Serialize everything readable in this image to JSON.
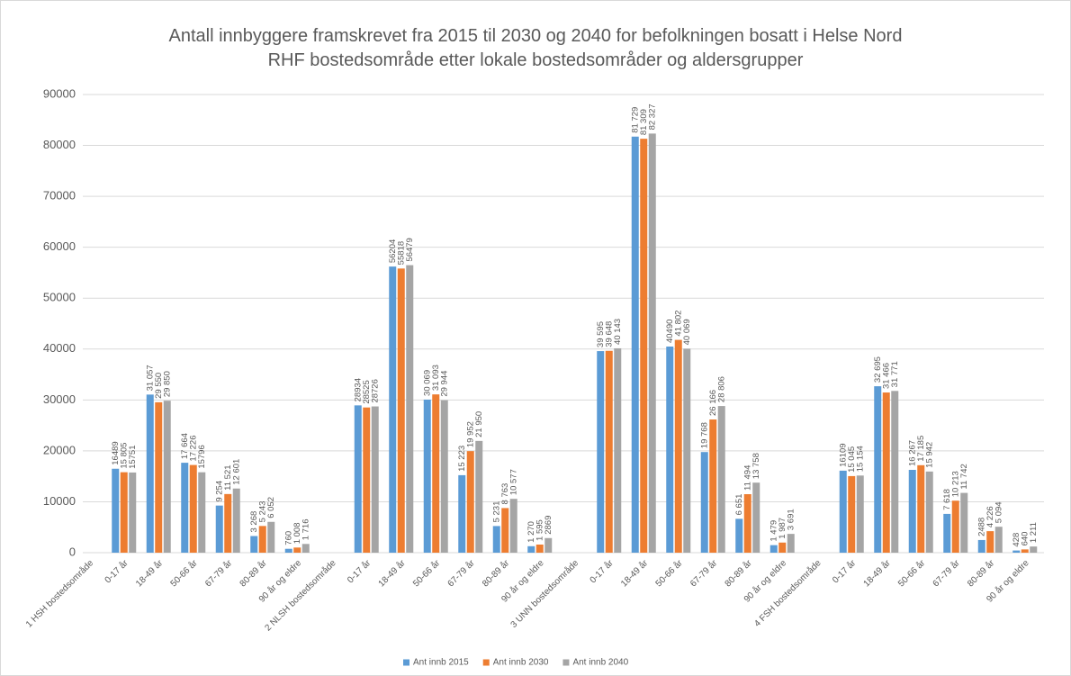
{
  "chart_data": {
    "type": "bar",
    "title": [
      "Antall innbyggere framskrevet fra 2015 til 2030 og 2040 for befolkningen bosatt i Helse Nord",
      "RHF bostedsområde  etter lokale bostedsområder  og aldersgrupper"
    ],
    "categories": [
      "1 HSH bostedsområde",
      "0-17 år",
      "18-49 år",
      "50-66 år",
      "67-79 år",
      "80-89 år",
      "90 år og eldre",
      "2 NLSH bostedsområde",
      "0-17 år",
      "18-49 år",
      "50-66 år",
      "67-79 år",
      "80-89 år",
      "90 år og eldre",
      "3 UNN bostedsområde",
      "0-17 år",
      "18-49 år",
      "50-66 år",
      "67-79 år",
      "80-89 år",
      "90 år og eldre",
      "4 FSH bostedsområde",
      "0-17 år",
      "18-49 år",
      "50-66 år",
      "67-79 år",
      "80-89 år",
      "90 år og eldre"
    ],
    "series": [
      {
        "name": "Ant innb 2015",
        "color": "#5b9bd5",
        "values": [
          null,
          16489,
          31057,
          17664,
          9254,
          3268,
          760,
          null,
          28934,
          56204,
          30069,
          15223,
          5231,
          1270,
          null,
          39595,
          81729,
          40490,
          19768,
          6651,
          1479,
          null,
          16109,
          32695,
          16267,
          7618,
          2488,
          428
        ],
        "value_labels": [
          null,
          "16489",
          "31 057",
          "17 664",
          "9 254",
          "3 268",
          "760",
          null,
          "28934",
          "56204",
          "30 069",
          "15 223",
          "5 231",
          "1 270",
          null,
          "39 595",
          "81 729",
          "40490",
          "19 768",
          "6 651",
          "1 479",
          null,
          "16109",
          "32 695",
          "16 267",
          "7 618",
          "2488",
          "428"
        ]
      },
      {
        "name": "Ant innb 2030",
        "color": "#ed7d31",
        "values": [
          null,
          15805,
          29550,
          17226,
          11521,
          5243,
          1008,
          null,
          28525,
          55818,
          31093,
          19952,
          8763,
          1595,
          null,
          39648,
          81309,
          41802,
          26166,
          11494,
          1987,
          null,
          15045,
          31466,
          17185,
          10213,
          4226,
          640
        ],
        "value_labels": [
          null,
          "15 805",
          "29 550",
          "17 226",
          "11 521",
          "5 243",
          "1 008",
          null,
          "28525",
          "55818",
          "31 093",
          "19 952",
          "8 763",
          "1 595",
          null,
          "39 648",
          "81 309",
          "41 802",
          "26 166",
          "11 494",
          "1 987",
          null,
          "15 045",
          "31 466",
          "17 185",
          "10 213",
          "4 226",
          "640"
        ]
      },
      {
        "name": "Ant innb 2040",
        "color": "#a5a5a5",
        "values": [
          null,
          15751,
          29850,
          15796,
          12601,
          6052,
          1716,
          null,
          28726,
          56479,
          29944,
          21950,
          10577,
          2869,
          null,
          40143,
          82327,
          40069,
          28806,
          13758,
          3691,
          null,
          15154,
          31771,
          15942,
          11742,
          5094,
          1211
        ],
        "value_labels": [
          null,
          "15751",
          "29 850",
          "15796",
          "12 601",
          "6 052",
          "1 716",
          null,
          "28726",
          "56479",
          "29 944",
          "21 950",
          "10 577",
          "2869",
          null,
          "40 143",
          "82 327",
          "40 069",
          "28 806",
          "13 758",
          "3 691",
          null,
          "15 154",
          "31 771",
          "15 942",
          "11 742",
          "5 094",
          "1 211"
        ]
      }
    ],
    "ylim": [
      0,
      90000
    ],
    "yticks": [
      0,
      10000,
      20000,
      30000,
      40000,
      50000,
      60000,
      70000,
      80000,
      90000
    ],
    "grid": true,
    "legend": "bottom"
  }
}
